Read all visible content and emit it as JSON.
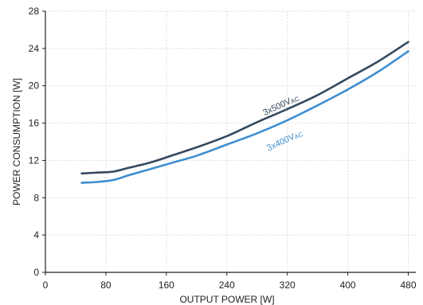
{
  "chart_data": {
    "type": "line",
    "title": "",
    "xlabel": "OUTPUT POWER [W]",
    "ylabel": "POWER CONSUMPTION [W]",
    "xlim": [
      0,
      490
    ],
    "ylim": [
      0,
      28
    ],
    "xticks": [
      0,
      80,
      160,
      240,
      320,
      400,
      480
    ],
    "yticks": [
      0,
      4,
      8,
      12,
      16,
      20,
      24,
      28
    ],
    "grid": true,
    "series": [
      {
        "name": "3x500VAC",
        "label_main": "3x500V",
        "label_sub": "AC",
        "color": "#34495e",
        "x": [
          48,
          70,
          90,
          110,
          140,
          170,
          200,
          240,
          280,
          320,
          360,
          400,
          440,
          480
        ],
        "y": [
          10.6,
          10.7,
          10.8,
          11.2,
          11.8,
          12.6,
          13.4,
          14.6,
          16.1,
          17.5,
          19.0,
          20.8,
          22.6,
          24.7
        ]
      },
      {
        "name": "3x400VAC",
        "label_main": "3x400V",
        "label_sub": "AC",
        "color": "#3e8ed0",
        "x": [
          48,
          70,
          90,
          110,
          140,
          170,
          200,
          240,
          280,
          320,
          360,
          400,
          440,
          480
        ],
        "y": [
          9.6,
          9.7,
          9.9,
          10.4,
          11.1,
          11.8,
          12.5,
          13.7,
          14.9,
          16.3,
          17.9,
          19.6,
          21.5,
          23.7
        ]
      }
    ]
  }
}
